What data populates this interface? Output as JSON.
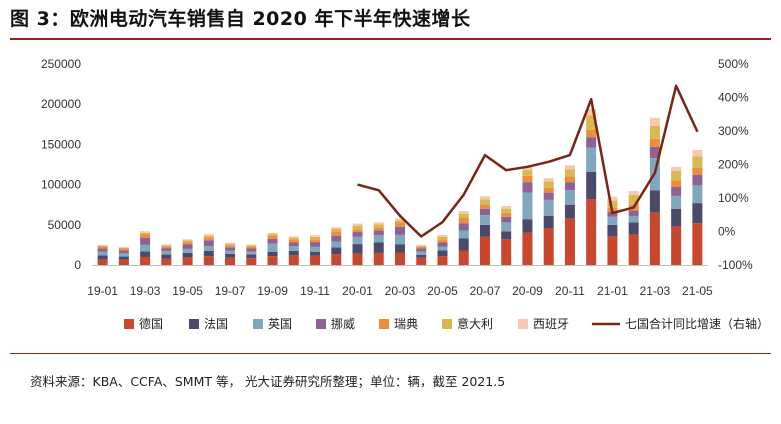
{
  "page": {
    "title": "图 3：欧洲电动汽车销售自 2020 年下半年快速增长",
    "source": "资料来源：KBA、CCFA、SMMT 等， 光大证券研究所整理；单位：辆，截至 2021.5"
  },
  "colors": {
    "title_rule": "#8b2a1c",
    "德国": "#c9482d",
    "法国": "#4c4a6b",
    "英国": "#7fa7bd",
    "挪威": "#8e6294",
    "瑞典": "#ee8e3a",
    "意大利": "#d8b84f",
    "西班牙": "#f6c8b2",
    "line": "#7a2416"
  },
  "chart_data": {
    "type": "bar",
    "stacked": true,
    "months": [
      "2019-01",
      "2019-02",
      "2019-03",
      "2019-04",
      "2019-05",
      "2019-06",
      "2019-07",
      "2019-08",
      "2019-09",
      "2019-10",
      "2019-11",
      "2019-12",
      "2020-01",
      "2020-02",
      "2020-03",
      "2020-04",
      "2020-05",
      "2020-06",
      "2020-07",
      "2020-08",
      "2020-09",
      "2020-10",
      "2020-11",
      "2020-12",
      "2021-01",
      "2021-02",
      "2021-03",
      "2021-04",
      "2021-05"
    ],
    "x_tick_labels": [
      "19-01",
      "19-03",
      "19-05",
      "19-07",
      "19-09",
      "19-11",
      "20-01",
      "20-03",
      "20-05",
      "20-07",
      "20-09",
      "20-11",
      "21-01",
      "21-03",
      "21-05"
    ],
    "y_left": {
      "ticks": [
        "0",
        "50000",
        "100000",
        "150000",
        "200000",
        "250000"
      ],
      "min": 0,
      "max": 250000
    },
    "y_right": {
      "ticks": [
        "-100%",
        "0%",
        "100%",
        "200%",
        "300%",
        "400%",
        "500%"
      ],
      "min": -100,
      "max": 500
    },
    "series": [
      {
        "name": "德国",
        "values": [
          7000,
          6500,
          10000,
          8000,
          9500,
          11000,
          9000,
          8500,
          11000,
          12000,
          11500,
          13500,
          14000,
          15000,
          15500,
          9000,
          11000,
          18000,
          35000,
          32000,
          40000,
          46000,
          58000,
          82000,
          36000,
          38000,
          65000,
          48000,
          52000
        ]
      },
      {
        "name": "法国",
        "values": [
          5000,
          4000,
          7000,
          5000,
          5500,
          6500,
          5000,
          4500,
          5500,
          5500,
          5000,
          8500,
          12000,
          13000,
          10000,
          3500,
          7000,
          15000,
          15000,
          10000,
          17000,
          15000,
          17000,
          34000,
          14000,
          15000,
          28000,
          22000,
          25000
        ]
      },
      {
        "name": "英国",
        "values": [
          4500,
          4000,
          8000,
          4500,
          5000,
          6000,
          4000,
          3500,
          10000,
          6000,
          6000,
          7000,
          9000,
          9000,
          12000,
          4000,
          5000,
          10000,
          12000,
          11000,
          33000,
          20000,
          18000,
          30000,
          10000,
          8000,
          40000,
          16000,
          22000
        ]
      },
      {
        "name": "挪威",
        "values": [
          4000,
          3500,
          9000,
          3500,
          5500,
          7000,
          4000,
          4000,
          6000,
          4500,
          6000,
          7500,
          6000,
          6000,
          10000,
          4000,
          5000,
          9000,
          8000,
          7000,
          13000,
          9000,
          10000,
          13000,
          6000,
          7000,
          14000,
          11000,
          13000
        ]
      },
      {
        "name": "瑞典",
        "values": [
          2500,
          2500,
          4500,
          2000,
          3000,
          4000,
          2500,
          2500,
          4000,
          3500,
          3500,
          5500,
          3000,
          3500,
          5500,
          2000,
          3000,
          6500,
          5000,
          5000,
          8000,
          6000,
          7000,
          9000,
          5000,
          7000,
          10000,
          8000,
          9000
        ]
      },
      {
        "name": "意大利",
        "values": [
          1000,
          1000,
          1500,
          1500,
          2000,
          2000,
          1500,
          1500,
          2000,
          2500,
          3000,
          3000,
          5000,
          4000,
          2500,
          1500,
          4000,
          5000,
          6500,
          5000,
          7000,
          8000,
          9000,
          18000,
          9000,
          12000,
          16000,
          12000,
          14000
        ]
      },
      {
        "name": "西班牙",
        "values": [
          1000,
          1000,
          2000,
          1000,
          1500,
          2000,
          1500,
          1000,
          1500,
          1500,
          2000,
          2000,
          2500,
          2500,
          2000,
          1000,
          2500,
          3500,
          4000,
          3500,
          4000,
          4000,
          5000,
          8000,
          5000,
          5000,
          10000,
          5000,
          8000
        ]
      }
    ],
    "line": {
      "name": "七国合计同比增速（右轴）",
      "axis": "right",
      "start_index": 12,
      "values": [
        140,
        123,
        47,
        -15,
        28,
        110,
        228,
        183,
        193,
        208,
        228,
        395,
        55,
        72,
        175,
        435,
        298
      ]
    },
    "legend_position": "bottom"
  }
}
